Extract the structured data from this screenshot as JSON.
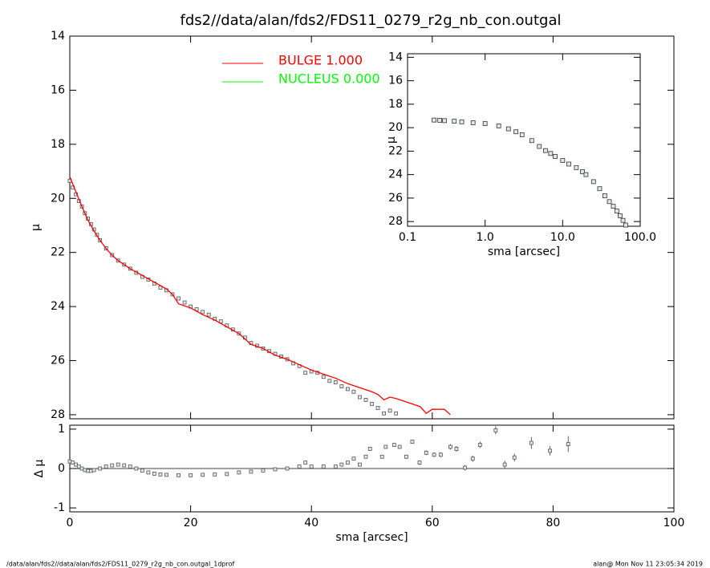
{
  "chart_data": [
    {
      "type": "line",
      "title": "fds2//data/alan/fds2/FDS11_0279_r2g_nb_con.outgal",
      "ylabel": "μ",
      "xlim": [
        0,
        100
      ],
      "ylim": [
        28.15,
        14
      ],
      "yticks": [
        14,
        16,
        18,
        20,
        22,
        24,
        26,
        28
      ],
      "series": [
        {
          "marker": "square",
          "color": "#555555",
          "x": [
            0,
            0.5,
            1,
            1.5,
            2,
            2.5,
            3,
            3.5,
            4,
            4.5,
            5,
            6,
            7,
            8,
            9,
            10,
            11,
            12,
            13,
            14,
            15,
            16,
            17,
            18,
            19,
            20,
            21,
            22,
            23,
            24,
            25,
            26,
            27,
            28,
            29,
            30,
            31,
            32,
            33,
            34,
            35,
            36,
            37,
            38,
            39,
            40,
            41,
            42,
            43,
            44,
            45,
            46,
            47,
            48,
            49,
            50,
            51,
            52,
            53,
            54
          ],
          "values": [
            19.35,
            19.6,
            19.85,
            20.1,
            20.3,
            20.55,
            20.75,
            20.95,
            21.15,
            21.35,
            21.55,
            21.85,
            22.1,
            22.3,
            22.45,
            22.6,
            22.75,
            22.9,
            23.0,
            23.15,
            23.3,
            23.4,
            23.55,
            23.7,
            23.85,
            24.0,
            24.1,
            24.2,
            24.3,
            24.45,
            24.55,
            24.7,
            24.85,
            25.0,
            25.15,
            25.35,
            25.45,
            25.55,
            25.65,
            25.75,
            25.85,
            25.95,
            26.1,
            26.2,
            26.45,
            26.4,
            26.45,
            26.6,
            26.75,
            26.8,
            26.95,
            27.05,
            27.15,
            27.35,
            27.45,
            27.6,
            27.75,
            27.95,
            27.85,
            27.95
          ]
        },
        {
          "name": "BULGE  1.000",
          "color": "#ff0000",
          "x": [
            0,
            1,
            2,
            3,
            4,
            5,
            6,
            7,
            8,
            10,
            12,
            14,
            16,
            17,
            18,
            20,
            22,
            24,
            26,
            28,
            30,
            32,
            34,
            36,
            38,
            40,
            42,
            44,
            46,
            48,
            50,
            51,
            52,
            53,
            54,
            56,
            58,
            59,
            60,
            62,
            63
          ],
          "values": [
            19.2,
            19.75,
            20.3,
            20.8,
            21.2,
            21.55,
            21.85,
            22.1,
            22.3,
            22.6,
            22.85,
            23.1,
            23.35,
            23.55,
            23.9,
            24.05,
            24.3,
            24.5,
            24.75,
            25.0,
            25.4,
            25.55,
            25.8,
            25.95,
            26.15,
            26.35,
            26.5,
            26.65,
            26.85,
            27.0,
            27.15,
            27.25,
            27.45,
            27.35,
            27.4,
            27.55,
            27.7,
            27.95,
            27.8,
            27.8,
            28.0
          ]
        },
        {
          "name": "NUCLEUS  0.000",
          "color": "#00ff00",
          "x": [],
          "values": []
        }
      ]
    },
    {
      "type": "scatter",
      "xlabel": "sma [arcsec]",
      "ylabel": "Δ μ",
      "xlim": [
        0,
        100
      ],
      "xticks": [
        0,
        20,
        40,
        60,
        80,
        100
      ],
      "ylim": [
        -1.1,
        1.1
      ],
      "yticks": [
        -1,
        0,
        1
      ],
      "color": "#555555",
      "x": [
        0,
        0.5,
        1,
        1.5,
        2,
        2.5,
        3,
        3.5,
        4,
        5,
        6,
        7,
        8,
        9,
        10,
        11,
        12,
        13,
        14,
        15,
        16,
        18,
        20,
        22,
        24,
        26,
        28,
        30,
        32,
        34,
        36,
        38,
        39,
        40,
        42,
        44,
        45,
        46,
        47,
        48,
        49,
        49.7,
        51.7,
        52.3,
        53.7,
        54.6,
        55.7,
        56.7,
        57.9,
        59,
        60.3,
        61.4,
        63,
        64,
        65.4,
        66.7,
        67.9,
        70.5,
        72,
        73.6,
        76.4,
        79.5,
        82.5
      ],
      "values": [
        0.18,
        0.15,
        0.1,
        0.05,
        0.0,
        -0.04,
        -0.06,
        -0.06,
        -0.04,
        0.0,
        0.05,
        0.08,
        0.1,
        0.08,
        0.05,
        0.0,
        -0.05,
        -0.1,
        -0.13,
        -0.15,
        -0.16,
        -0.17,
        -0.17,
        -0.16,
        -0.15,
        -0.14,
        -0.1,
        -0.08,
        -0.05,
        -0.02,
        0.0,
        0.05,
        0.15,
        0.05,
        0.05,
        0.05,
        0.1,
        0.15,
        0.25,
        0.1,
        0.3,
        0.5,
        0.3,
        0.55,
        0.6,
        0.55,
        0.3,
        0.68,
        0.15,
        0.4,
        0.35,
        0.35,
        0.55,
        0.5,
        0.02,
        0.25,
        0.6,
        0.97,
        0.1,
        0.28,
        0.65,
        0.45,
        0.62
      ],
      "errors": [
        0.01,
        0.01,
        0.01,
        0.01,
        0.01,
        0.01,
        0.01,
        0.01,
        0.01,
        0.01,
        0.01,
        0.01,
        0.01,
        0.01,
        0.01,
        0.01,
        0.01,
        0.01,
        0.01,
        0.01,
        0.01,
        0.01,
        0.01,
        0.01,
        0.01,
        0.01,
        0.01,
        0.01,
        0.01,
        0.01,
        0.01,
        0.02,
        0.02,
        0.02,
        0.02,
        0.02,
        0.03,
        0.03,
        0.03,
        0.03,
        0.04,
        0.04,
        0.04,
        0.04,
        0.05,
        0.05,
        0.05,
        0.05,
        0.06,
        0.06,
        0.06,
        0.06,
        0.07,
        0.07,
        0.07,
        0.08,
        0.08,
        0.1,
        0.1,
        0.1,
        0.15,
        0.12,
        0.2
      ]
    },
    {
      "type": "scatter",
      "xlabel": "sma [arcsec]",
      "ylabel": "μ",
      "log_x": true,
      "xlim": [
        0.1,
        100
      ],
      "xticks": [
        {
          "value": 0.1,
          "label": "0.1"
        },
        {
          "value": 1,
          "label": "1.0"
        },
        {
          "value": 10,
          "label": "10.0"
        },
        {
          "value": 100,
          "label": "100.0"
        }
      ],
      "ylim": [
        28.4,
        13.7
      ],
      "yticks": [
        14,
        16,
        18,
        20,
        22,
        24,
        26,
        28
      ],
      "color": "#333333",
      "x": [
        0.22,
        0.26,
        0.3,
        0.4,
        0.5,
        0.7,
        1,
        1.5,
        2,
        2.5,
        3,
        4,
        5,
        6,
        7,
        8,
        10,
        12,
        15,
        18,
        20,
        25,
        30,
        35,
        40,
        45,
        50,
        55,
        60,
        65
      ],
      "values": [
        19.35,
        19.37,
        19.4,
        19.45,
        19.5,
        19.58,
        19.65,
        19.85,
        20.1,
        20.35,
        20.6,
        21.1,
        21.6,
        21.95,
        22.2,
        22.45,
        22.8,
        23.1,
        23.4,
        23.75,
        24.0,
        24.6,
        25.2,
        25.8,
        26.3,
        26.7,
        27.1,
        27.5,
        27.9,
        28.3
      ]
    }
  ],
  "footer": {
    "left": "/data/alan/fds2//data/alan/fds2/FDS11_0279_r2g_nb_con.outgal_1dprof",
    "right": "alan@  Mon Nov 11 23:05:34 2019"
  }
}
